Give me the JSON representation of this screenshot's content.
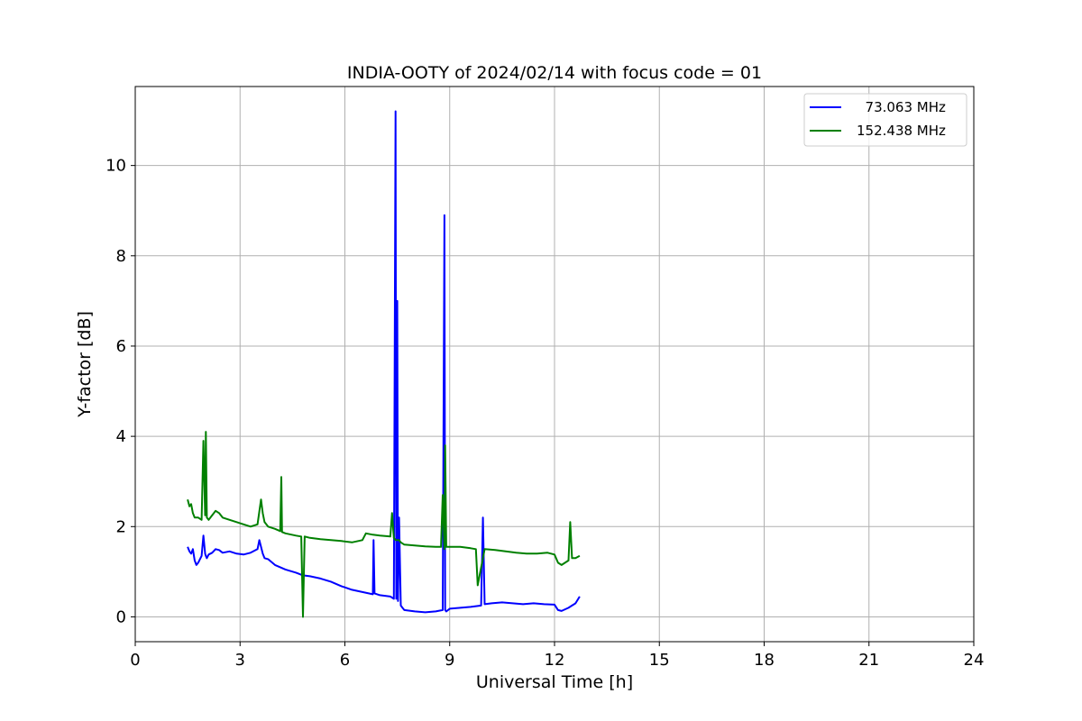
{
  "chart_data": {
    "type": "line",
    "title": "INDIA-OOTY of 2024/02/14 with focus code = 01",
    "xlabel": "Universal Time [h]",
    "ylabel": "Y-factor [dB]",
    "xlim": [
      0,
      24
    ],
    "ylim": [
      -0.55,
      11.75
    ],
    "xticks": [
      0,
      3,
      6,
      9,
      12,
      15,
      18,
      21,
      24
    ],
    "yticks": [
      0,
      2,
      4,
      6,
      8,
      10
    ],
    "grid": true,
    "legend_position": "top-right",
    "series": [
      {
        "name": "73.063 MHz",
        "legend_label": "  73.063 MHz",
        "color": "#0000ff",
        "x": [
          1.5,
          1.55,
          1.6,
          1.65,
          1.7,
          1.75,
          1.8,
          1.9,
          1.95,
          2.0,
          2.02,
          2.05,
          2.1,
          2.2,
          2.3,
          2.4,
          2.5,
          2.7,
          2.9,
          3.1,
          3.3,
          3.5,
          3.55,
          3.6,
          3.65,
          3.7,
          3.8,
          4.0,
          4.3,
          4.6,
          4.8,
          5.0,
          5.3,
          5.6,
          5.9,
          6.2,
          6.5,
          6.8,
          6.82,
          6.85,
          7.0,
          7.3,
          7.4,
          7.45,
          7.47,
          7.5,
          7.52,
          7.55,
          7.6,
          7.65,
          7.7,
          8.0,
          8.3,
          8.6,
          8.8,
          8.85,
          8.87,
          8.9,
          9.0,
          9.3,
          9.6,
          9.9,
          9.95,
          10.0,
          10.2,
          10.5,
          10.8,
          11.1,
          11.4,
          11.7,
          12.0,
          12.1,
          12.2,
          12.4,
          12.6,
          12.72
        ],
        "y": [
          1.55,
          1.45,
          1.4,
          1.5,
          1.25,
          1.15,
          1.2,
          1.35,
          1.8,
          1.4,
          1.35,
          1.3,
          1.38,
          1.42,
          1.5,
          1.48,
          1.42,
          1.45,
          1.4,
          1.38,
          1.42,
          1.5,
          1.7,
          1.55,
          1.4,
          1.3,
          1.28,
          1.15,
          1.05,
          0.98,
          0.92,
          0.9,
          0.85,
          0.78,
          0.68,
          0.6,
          0.55,
          0.5,
          1.7,
          0.52,
          0.48,
          0.45,
          0.4,
          11.2,
          0.4,
          7.0,
          0.35,
          2.2,
          0.25,
          0.2,
          0.15,
          0.12,
          0.1,
          0.12,
          0.15,
          8.9,
          0.15,
          0.12,
          0.18,
          0.2,
          0.22,
          0.25,
          2.2,
          0.28,
          0.3,
          0.32,
          0.3,
          0.28,
          0.3,
          0.28,
          0.27,
          0.15,
          0.13,
          0.2,
          0.3,
          0.45
        ]
      },
      {
        "name": "152.438 MHz",
        "legend_label": "152.438 MHz",
        "color": "#008000",
        "x": [
          1.5,
          1.55,
          1.6,
          1.65,
          1.7,
          1.8,
          1.9,
          1.95,
          2.0,
          2.02,
          2.05,
          2.1,
          2.2,
          2.3,
          2.4,
          2.5,
          2.7,
          2.9,
          3.1,
          3.3,
          3.5,
          3.6,
          3.65,
          3.7,
          3.8,
          4.0,
          4.15,
          4.18,
          4.2,
          4.3,
          4.6,
          4.75,
          4.8,
          4.85,
          5.0,
          5.3,
          5.6,
          5.9,
          6.2,
          6.5,
          6.6,
          6.8,
          7.0,
          7.3,
          7.35,
          7.4,
          7.45,
          7.5,
          7.55,
          7.6,
          7.7,
          8.0,
          8.3,
          8.6,
          8.75,
          8.8,
          8.85,
          8.87,
          8.9,
          9.0,
          9.3,
          9.6,
          9.75,
          9.8,
          10.0,
          10.3,
          10.6,
          10.9,
          11.2,
          11.5,
          11.8,
          12.0,
          12.1,
          12.2,
          12.4,
          12.45,
          12.5,
          12.6,
          12.72
        ],
        "y": [
          2.6,
          2.45,
          2.5,
          2.3,
          2.2,
          2.2,
          2.15,
          3.9,
          2.25,
          4.1,
          2.2,
          2.15,
          2.25,
          2.35,
          2.3,
          2.2,
          2.15,
          2.1,
          2.05,
          2.0,
          2.05,
          2.6,
          2.3,
          2.1,
          2.0,
          1.95,
          1.9,
          3.1,
          1.88,
          1.85,
          1.8,
          1.78,
          0.0,
          1.78,
          1.75,
          1.72,
          1.7,
          1.68,
          1.65,
          1.7,
          1.85,
          1.82,
          1.8,
          1.78,
          2.3,
          1.75,
          1.7,
          1.7,
          1.7,
          1.65,
          1.6,
          1.58,
          1.56,
          1.55,
          1.55,
          2.7,
          1.5,
          3.8,
          1.55,
          1.55,
          1.55,
          1.52,
          1.5,
          0.7,
          1.5,
          1.48,
          1.45,
          1.42,
          1.4,
          1.4,
          1.42,
          1.38,
          1.2,
          1.15,
          1.25,
          2.1,
          1.3,
          1.3,
          1.35
        ]
      }
    ]
  }
}
